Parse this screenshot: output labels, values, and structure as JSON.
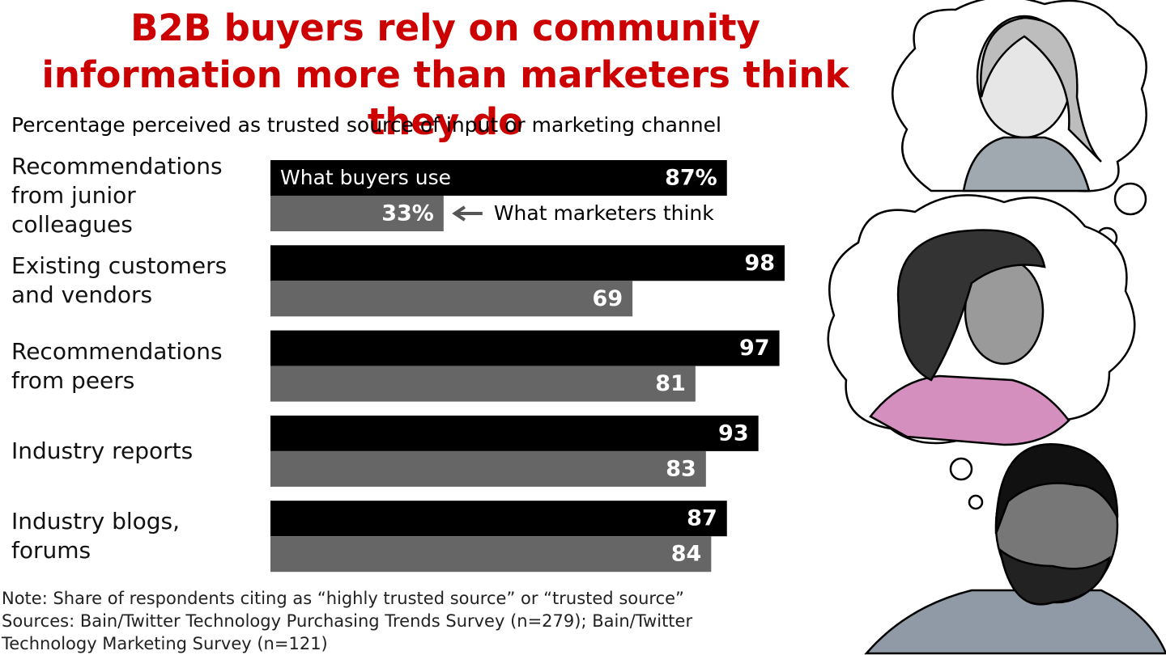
{
  "chart_data": {
    "type": "bar",
    "title": "B2B buyers rely on community information more than marketers think they do",
    "subtitle": "Percentage perceived as trusted source of input or marketing channel",
    "categories": [
      "Recommendations from junior colleagues",
      "Existing customers and vendors",
      "Recommendations from peers",
      "Industry reports",
      "Industry blogs, forums"
    ],
    "series": [
      {
        "name": "What buyers use",
        "color": "#000000",
        "values": [
          87,
          98,
          97,
          93,
          87
        ],
        "value_labels": [
          "87%",
          "98",
          "97",
          "93",
          "87"
        ]
      },
      {
        "name": "What marketers think",
        "color": "#666666",
        "values": [
          33,
          69,
          81,
          83,
          84
        ],
        "value_labels": [
          "33%",
          "69",
          "81",
          "83",
          "84"
        ]
      }
    ],
    "xlim": [
      0,
      100
    ],
    "note": "Note: Share of respondents citing as “highly trusted source” or “trusted source”",
    "sources": "Sources: Bain/Twitter Technology Purchasing Trends Survey (n=279); Bain/Twitter Technology Marketing Survey (n=121)"
  }
}
